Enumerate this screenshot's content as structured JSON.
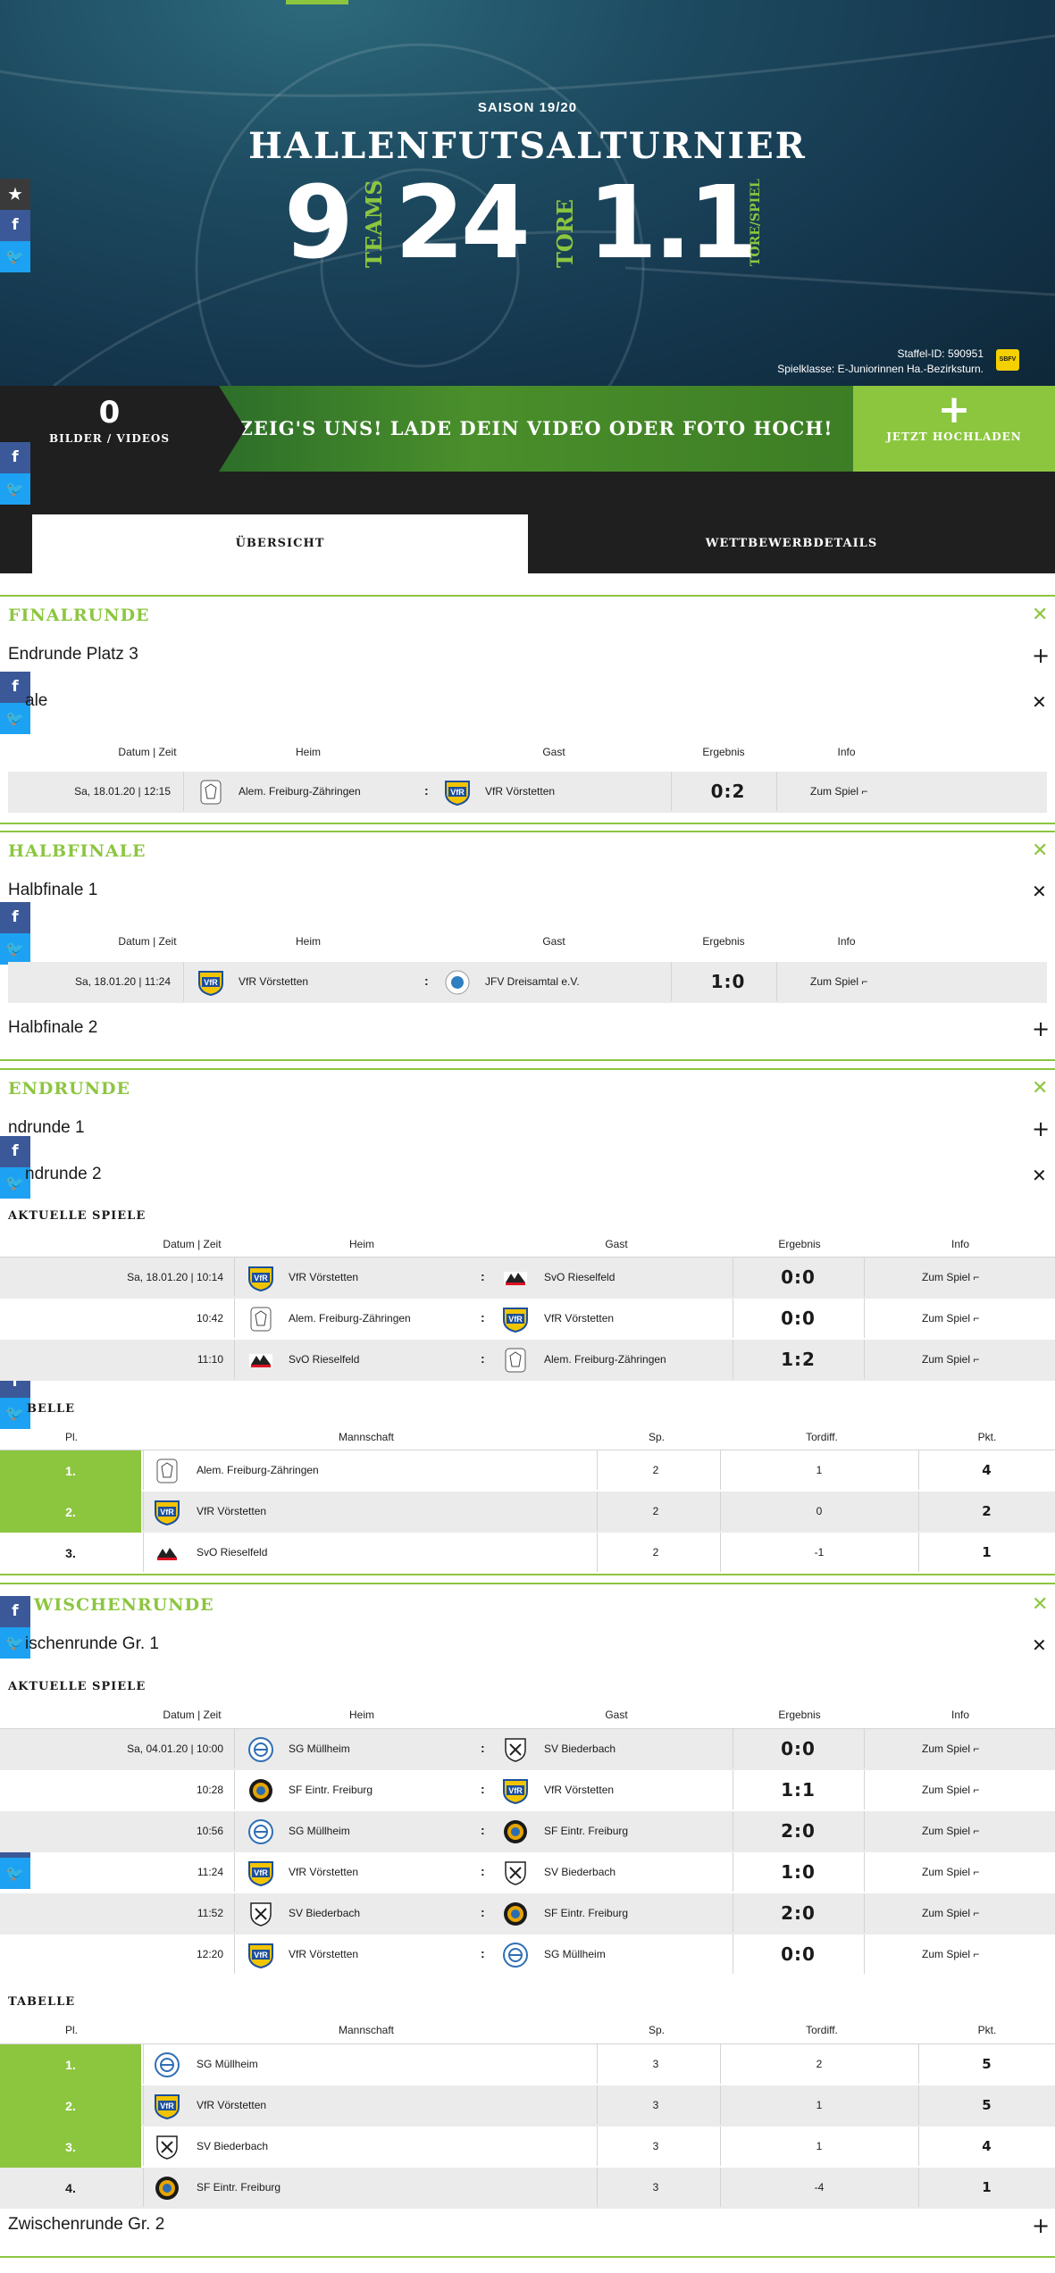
{
  "hero": {
    "saison": "SAISON 19/20",
    "title": "HALLENFUTSALTURNIER",
    "teams_value": "9",
    "teams_label": "TEAMS",
    "goals_value": "24",
    "goals_label": "TORE",
    "ratio_value": "1.1",
    "ratio_label": "TORE/SPIEL",
    "staffel": "Staffel-ID: 590951",
    "spielklasse": "Spielklasse: E-Juniorinnen Ha.-Bezirksturn.",
    "badge": "SBFV"
  },
  "upload": {
    "count": "0",
    "count_label": "BILDER / VIDEOS",
    "cta": "ZEIG'S UNS! LADE DEIN VIDEO ODER FOTO HOCH!",
    "button_icon": "+",
    "button_label": "JETZT HOCHLADEN"
  },
  "tabs": {
    "overview": "ÜBERSICHT",
    "details": "WETTBEWERBDETAILS"
  },
  "social": {
    "star": "★",
    "fb": "f",
    "tw": "🐦"
  },
  "labels": {
    "date": "Datum | Zeit",
    "home": "Heim",
    "guest": "Gast",
    "result": "Ergebnis",
    "info": "Info",
    "pl": "Pl.",
    "team": "Mannschaft",
    "sp": "Sp.",
    "tordiff": "Tordiff.",
    "pkt": "Pkt.",
    "aktuelle": "AKTUELLE SPIELE",
    "tabelle": "TABELLE",
    "tabelle_cut": "BELLE",
    "close": "✕",
    "plus": "+",
    "colon": ":",
    "link": "Zum Spiel ⌐"
  },
  "sections": {
    "finalrunde": {
      "title": "FINALRUNDE",
      "sub1": "Endrunde Platz 3",
      "sub2": "ale"
    },
    "halbfinale": {
      "title": "HALBFINALE",
      "sub1": "Halbfinale 1",
      "sub2": "Halbfinale 2"
    },
    "endrunde": {
      "title": "ENDRUNDE",
      "sub1": "ndrunde 1",
      "sub2": "ndrunde 2"
    },
    "zwischenrunde": {
      "title": "WISCHENRUNDE",
      "sub1": "ischenrunde Gr. 1",
      "sub2": "Zwischenrunde Gr. 2"
    }
  },
  "final_match": {
    "date": "Sa, 18.01.20 | 12:15",
    "home": "Alem. Freiburg-Zähringen",
    "guest": "VfR Vörstetten",
    "result": "0:2"
  },
  "halbfinale1_match": {
    "date": "Sa, 18.01.20 | 11:24",
    "home": "VfR Vörstetten",
    "guest": "JFV Dreisamtal e.V.",
    "result": "1:0"
  },
  "endrunde2_matches": [
    {
      "date": "Sa, 18.01.20 | 10:14",
      "home": "VfR Vörstetten",
      "guest": "SvO Rieselfeld",
      "result": "0:0"
    },
    {
      "date": "10:42",
      "home": "Alem. Freiburg-Zähringen",
      "guest": "VfR Vörstetten",
      "result": "0:0"
    },
    {
      "date": "11:10",
      "home": "SvO Rieselfeld",
      "guest": "Alem. Freiburg-Zähringen",
      "result": "1:2"
    }
  ],
  "endrunde2_table": [
    {
      "pl": "1.",
      "team": "Alem. Freiburg-Zähringen",
      "sp": "2",
      "diff": "1",
      "pkt": "4"
    },
    {
      "pl": "2.",
      "team": "VfR Vörstetten",
      "sp": "2",
      "diff": "0",
      "pkt": "2"
    },
    {
      "pl": "3.",
      "team": "SvO Rieselfeld",
      "sp": "2",
      "diff": "-1",
      "pkt": "1"
    }
  ],
  "zw1_matches": [
    {
      "date": "Sa, 04.01.20 | 10:00",
      "home": "SG Müllheim",
      "guest": "SV Biederbach",
      "result": "0:0"
    },
    {
      "date": "10:28",
      "home": "SF Eintr. Freiburg",
      "guest": "VfR Vörstetten",
      "result": "1:1"
    },
    {
      "date": "10:56",
      "home": "SG Müllheim",
      "guest": "SF Eintr. Freiburg",
      "result": "2:0"
    },
    {
      "date": "11:24",
      "home": "VfR Vörstetten",
      "guest": "SV Biederbach",
      "result": "1:0"
    },
    {
      "date": "11:52",
      "home": "SV Biederbach",
      "guest": "SF Eintr. Freiburg",
      "result": "2:0"
    },
    {
      "date": "12:20",
      "home": "VfR Vörstetten",
      "guest": "SG Müllheim",
      "result": "0:0"
    }
  ],
  "zw1_table": [
    {
      "pl": "1.",
      "team": "SG Müllheim",
      "sp": "3",
      "diff": "2",
      "pkt": "5"
    },
    {
      "pl": "2.",
      "team": "VfR Vörstetten",
      "sp": "3",
      "diff": "1",
      "pkt": "5"
    },
    {
      "pl": "3.",
      "team": "SV Biederbach",
      "sp": "3",
      "diff": "1",
      "pkt": "4"
    },
    {
      "pl": "4.",
      "team": "SF Eintr. Freiburg",
      "sp": "3",
      "diff": "-4",
      "pkt": "1"
    }
  ],
  "colors": {
    "accent": "#8cc63f",
    "dark": "#1f1f1f",
    "facebook": "#3b5998",
    "twitter": "#1da1f2"
  }
}
